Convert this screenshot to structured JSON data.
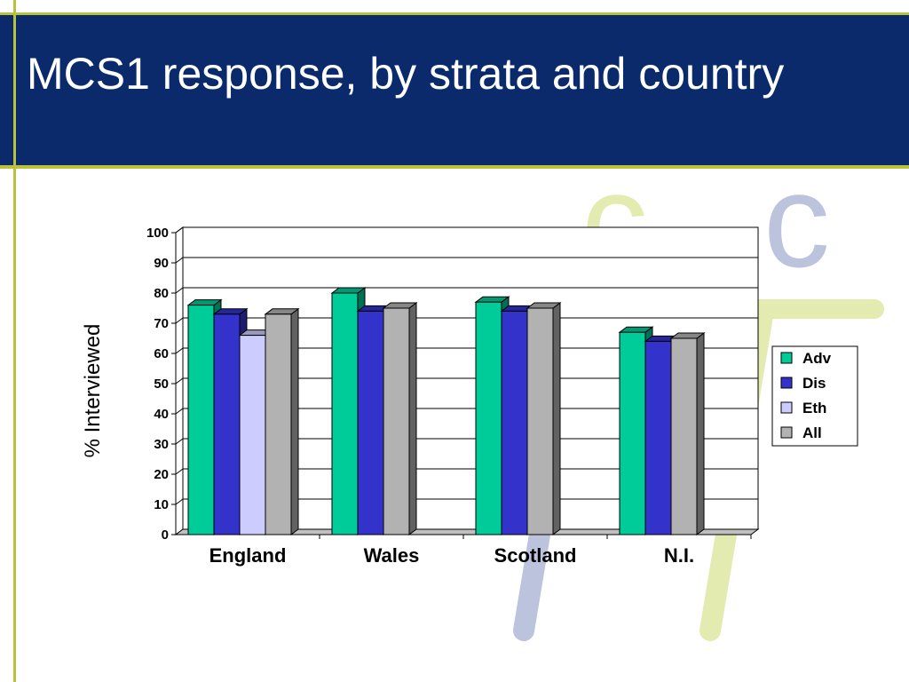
{
  "slide": {
    "title": " MCS1 response, by strata and country",
    "colors": {
      "header_bg": "#0a2a6b",
      "accent_line": "#b9c23a",
      "title_text": "#ffffff"
    },
    "logo": {
      "letters": [
        "c",
        "c"
      ],
      "colors": [
        "#dfe8a8",
        "#b8c0d8"
      ]
    }
  },
  "chart_data": {
    "type": "bar",
    "title": "",
    "xlabel": "",
    "ylabel": "% Interviewed",
    "ylim": [
      0,
      100
    ],
    "yticks": [
      "0",
      "10",
      "20",
      "30",
      "40",
      "50",
      "60",
      "70",
      "80",
      "90",
      "100"
    ],
    "categories": [
      "England",
      "Wales",
      "Scotland",
      "N.I."
    ],
    "series": [
      {
        "name": "Adv",
        "color": "#00cc99",
        "values": [
          76,
          80,
          77,
          67
        ]
      },
      {
        "name": "Dis",
        "color": "#3333cc",
        "values": [
          73,
          74,
          74,
          64
        ]
      },
      {
        "name": "Eth",
        "color": "#ccccff",
        "values": [
          66,
          null,
          null,
          null
        ]
      },
      {
        "name": "All",
        "color": "#b2b2b2",
        "values": [
          73,
          75,
          75,
          65
        ]
      }
    ],
    "grid": true,
    "legend_position": "right"
  }
}
